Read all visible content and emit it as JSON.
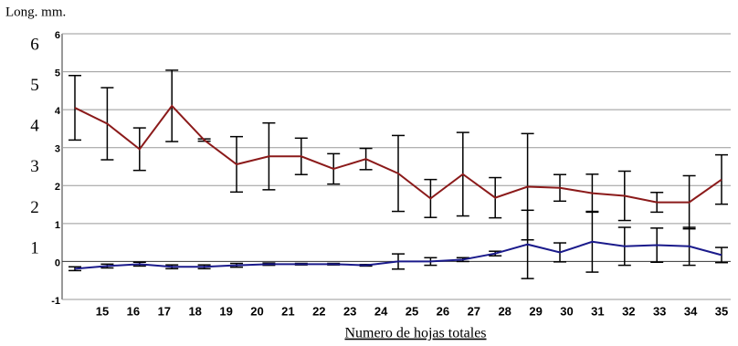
{
  "chart_data": {
    "type": "line",
    "y_label": "Long. mm.",
    "x_label": "Numero de hojas totales",
    "categories": [
      "15",
      "16",
      "17",
      "18",
      "19",
      "20",
      "21",
      "22",
      "23",
      "24",
      "25",
      "26",
      "27",
      "28",
      "29",
      "30",
      "31",
      "32",
      "33",
      "34",
      "35"
    ],
    "ylim": [
      -1,
      6
    ],
    "yticks": [
      -1,
      0,
      1,
      2,
      3,
      4,
      5,
      6
    ],
    "y2lim": [
      -0.23,
      6.29
    ],
    "y2ticks": [
      1,
      2,
      3,
      4,
      5,
      6
    ],
    "grid": true,
    "series": [
      {
        "color": "#8b1a1a",
        "values": [
          4.05,
          3.63,
          2.96,
          4.1,
          3.2,
          2.56,
          2.77,
          2.77,
          2.44,
          2.7,
          2.32,
          1.66,
          2.3,
          1.68,
          1.97,
          1.94,
          1.8,
          1.73,
          1.56,
          1.56,
          2.16
        ],
        "errors": [
          0.85,
          0.95,
          0.56,
          0.94,
          0.03,
          0.73,
          0.88,
          0.48,
          0.4,
          0.28,
          1.0,
          0.5,
          1.1,
          0.53,
          1.4,
          0.35,
          0.5,
          0.65,
          0.26,
          0.7,
          0.65
        ]
      },
      {
        "color": "#1a1a8b",
        "values": [
          -0.19,
          -0.12,
          -0.07,
          -0.14,
          -0.14,
          -0.1,
          -0.07,
          -0.07,
          -0.07,
          -0.1,
          0,
          0,
          0.05,
          0.21,
          0.45,
          0.24,
          0.52,
          0.4,
          0.43,
          0.4,
          0.17
        ],
        "errors": [
          0.05,
          0.05,
          0.05,
          0.05,
          0.05,
          0.05,
          0.03,
          0.02,
          0.02,
          0.02,
          0.2,
          0.1,
          0.05,
          0.06,
          0.9,
          0.25,
          0.8,
          0.5,
          0.45,
          0.5,
          0.2
        ]
      }
    ]
  }
}
